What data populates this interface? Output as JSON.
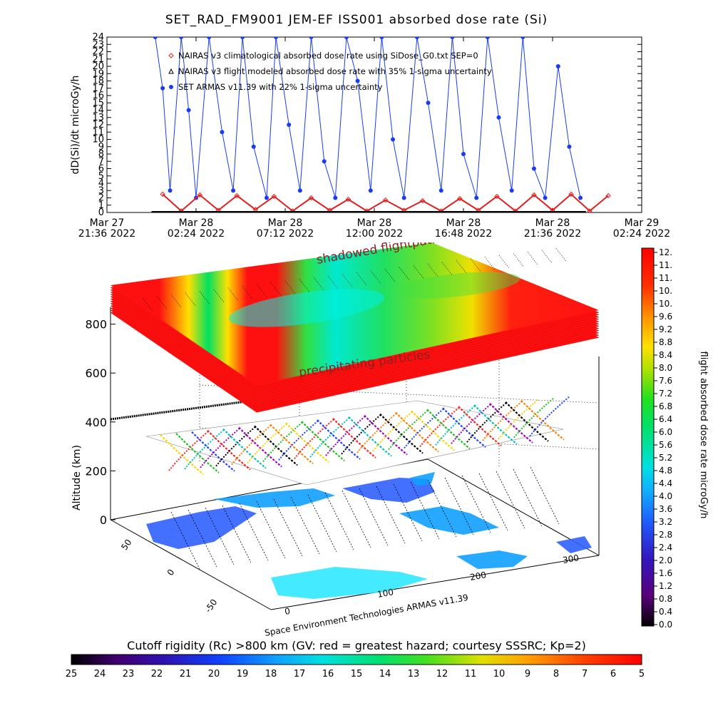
{
  "title": "SET_RAD_FM9001  JEM-EF ISS001 absorbed dose rate (Si)",
  "chart_data": [
    {
      "type": "line",
      "title": "SET_RAD_FM9001  JEM-EF ISS001 absorbed dose rate (Si)",
      "ylabel": "dD(Si)/dt microGy/h",
      "ylim": [
        0,
        24
      ],
      "yticks": [
        "0",
        "1",
        "2",
        "3",
        "4",
        "5",
        "6",
        "7",
        "8",
        "9",
        "10",
        "11",
        "12",
        "13",
        "14",
        "15",
        "16",
        "17",
        "18",
        "19",
        "20",
        "21",
        "22",
        "23",
        "24"
      ],
      "xticks": [
        {
          "line1": "Mar 27",
          "line2": "21:36 2022"
        },
        {
          "line1": "Mar 28",
          "line2": "02:24 2022"
        },
        {
          "line1": "Mar 28",
          "line2": "07:12 2022"
        },
        {
          "line1": "Mar 28",
          "line2": "12:00 2022"
        },
        {
          "line1": "Mar 28",
          "line2": "16:48 2022"
        },
        {
          "line1": "Mar 28",
          "line2": "21:36 2022"
        },
        {
          "line1": "Mar 29",
          "line2": "02:24 2022"
        }
      ],
      "legend": [
        {
          "label": "NAIRAS v3 climatological absorbed dose rate using SiDose_G0.txt SEP=0",
          "marker": "diamond",
          "color": "#e02020"
        },
        {
          "label": "NAIRAS v3 flight modeled absorbed dose rate with 35% 1-sigma uncertainty",
          "marker": "triangle",
          "color": "#000000"
        },
        {
          "label": "SET ARMAS v11.39 with 22% 1-sigma uncertainty",
          "marker": "dot",
          "color": "#1a3cf0"
        }
      ],
      "series": [
        {
          "name": "NAIRAS v3 climatological absorbed dose rate using SiDose_G0.txt SEP=0",
          "x_hours": [
            3,
            4,
            5,
            6,
            7,
            8,
            9,
            10,
            11,
            12,
            13,
            14,
            15,
            16,
            17,
            18,
            19,
            20,
            21,
            22,
            23,
            24,
            25,
            26,
            27
          ],
          "values": [
            2.5,
            0.2,
            2.4,
            0.3,
            2.3,
            0.4,
            2.2,
            0.2,
            2.0,
            0.3,
            1.8,
            0.2,
            1.7,
            0.3,
            1.6,
            0.2,
            1.9,
            0.3,
            2.2,
            0.2,
            2.4,
            0.3,
            2.5,
            0.2,
            2.3
          ]
        },
        {
          "name": "SET ARMAS v11.39 with 22% 1-sigma uncertainty",
          "x_hours": [
            2.6,
            3.0,
            3.4,
            4.0,
            4.4,
            4.8,
            5.5,
            6.2,
            6.8,
            7.3,
            7.9,
            8.6,
            9.1,
            9.8,
            10.4,
            11.0,
            11.7,
            12.3,
            12.9,
            13.5,
            14.2,
            14.8,
            15.4,
            16.0,
            16.7,
            17.3,
            18.0,
            18.6,
            19.2,
            19.9,
            20.5,
            21.1,
            21.8,
            22.4,
            23.0,
            23.6,
            24.3,
            24.9,
            25.5
          ],
          "values": [
            24,
            17,
            3,
            24,
            14,
            2,
            24,
            11,
            3,
            24,
            9,
            2,
            24,
            12,
            3,
            24,
            7,
            2,
            24,
            18,
            3,
            24,
            10,
            2,
            24,
            15,
            3,
            24,
            8,
            2,
            24,
            13,
            3,
            24,
            6,
            2,
            20,
            9,
            2
          ]
        }
      ]
    },
    {
      "type": "heatmap",
      "subtype": "3d-surface",
      "ylabel": "Altitude (km)",
      "zticks": [
        "0",
        "200",
        "400",
        "600",
        "800"
      ],
      "lat_ticks": [
        "50",
        "0",
        "-50"
      ],
      "lon_ticks": [
        "0",
        "100",
        "200",
        "300"
      ],
      "annotations": [
        "shadowed flightpath",
        "precipitating particles"
      ],
      "credit": "Space Environment Technologies ARMAS v11.39"
    },
    {
      "type": "heatmap",
      "subtype": "colorbar",
      "label": "flight absorbed dose rate microGy/h",
      "ticks": [
        "12.",
        "11.",
        "11.",
        "10.",
        "10.",
        "9.6",
        "9.2",
        "8.8",
        "8.4",
        "8.0",
        "7.6",
        "7.2",
        "6.8",
        "6.4",
        "6.0",
        "5.6",
        "5.2",
        "4.8",
        "4.4",
        "4.0",
        "3.6",
        "3.2",
        "2.8",
        "2.4",
        "2.0",
        "1.6",
        "1.2",
        "0.8",
        "0.4",
        "0.0"
      ]
    },
    {
      "type": "heatmap",
      "subtype": "colorbar",
      "label": "Cutoff rigidity (Rc) >800 km (GV: red = greatest hazard; courtesy SSSRC; Kp=2)",
      "ticks": [
        "25",
        "24",
        "23",
        "22",
        "21",
        "20",
        "19",
        "18",
        "17",
        "16",
        "15",
        "14",
        "13",
        "12",
        "11",
        "10",
        "9",
        "8",
        "7",
        "6",
        "5"
      ]
    }
  ]
}
